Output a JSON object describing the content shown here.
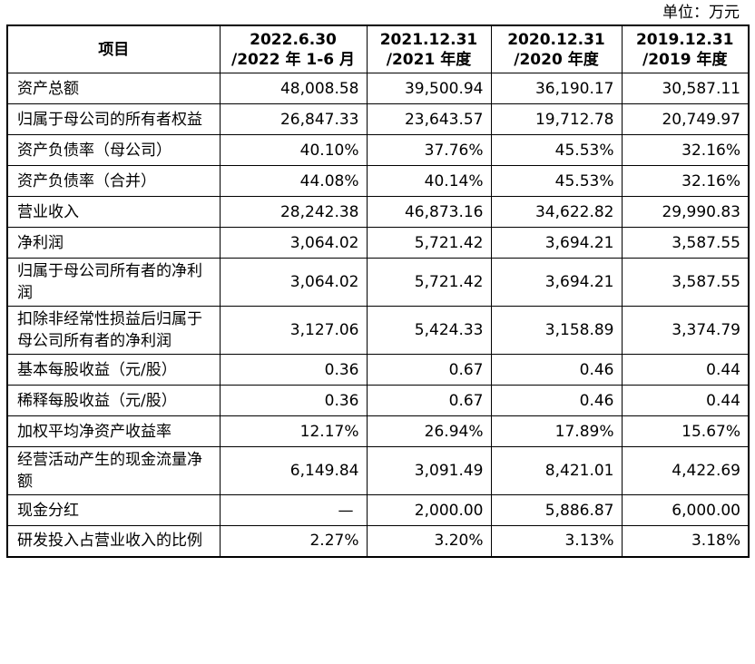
{
  "unit": "单位：万元",
  "table": {
    "headers": [
      {
        "line1": "项目",
        "line2": ""
      },
      {
        "line1": "2022.6.30",
        "line2": "/2022 年 1-6 月"
      },
      {
        "line1": "2021.12.31",
        "line2": "/2021 年度"
      },
      {
        "line1": "2020.12.31",
        "line2": "/2020 年度"
      },
      {
        "line1": "2019.12.31",
        "line2": "/2019 年度"
      }
    ],
    "rows": [
      {
        "label": "资产总额",
        "v": [
          "48,008.58",
          "39,500.94",
          "36,190.17",
          "30,587.11"
        ]
      },
      {
        "label": "归属于母公司的所有者权益",
        "v": [
          "26,847.33",
          "23,643.57",
          "19,712.78",
          "20,749.97"
        ]
      },
      {
        "label": "资产负债率（母公司）",
        "v": [
          "40.10%",
          "37.76%",
          "45.53%",
          "32.16%"
        ]
      },
      {
        "label": "资产负债率（合并）",
        "v": [
          "44.08%",
          "40.14%",
          "45.53%",
          "32.16%"
        ]
      },
      {
        "label": "营业收入",
        "v": [
          "28,242.38",
          "46,873.16",
          "34,622.82",
          "29,990.83"
        ]
      },
      {
        "label": "净利润",
        "v": [
          "3,064.02",
          "5,721.42",
          "3,694.21",
          "3,587.55"
        ]
      },
      {
        "label": "归属于母公司所有者的净利润",
        "v": [
          "3,064.02",
          "5,721.42",
          "3,694.21",
          "3,587.55"
        ]
      },
      {
        "label": "扣除非经常性损益后归属于母公司所有者的净利润",
        "v": [
          "3,127.06",
          "5,424.33",
          "3,158.89",
          "3,374.79"
        ]
      },
      {
        "label": "基本每股收益（元/股）",
        "v": [
          "0.36",
          "0.67",
          "0.46",
          "0.44"
        ]
      },
      {
        "label": "稀释每股收益（元/股）",
        "v": [
          "0.36",
          "0.67",
          "0.46",
          "0.44"
        ]
      },
      {
        "label": "加权平均净资产收益率",
        "v": [
          "12.17%",
          "26.94%",
          "17.89%",
          "15.67%"
        ]
      },
      {
        "label": "经营活动产生的现金流量净额",
        "v": [
          "6,149.84",
          "3,091.49",
          "8,421.01",
          "4,422.69"
        ]
      },
      {
        "label": "现金分红",
        "v": [
          "—",
          "2,000.00",
          "5,886.87",
          "6,000.00"
        ]
      },
      {
        "label": "研发投入占营业收入的比例",
        "v": [
          "2.27%",
          "3.20%",
          "3.13%",
          "3.18%"
        ]
      }
    ]
  }
}
